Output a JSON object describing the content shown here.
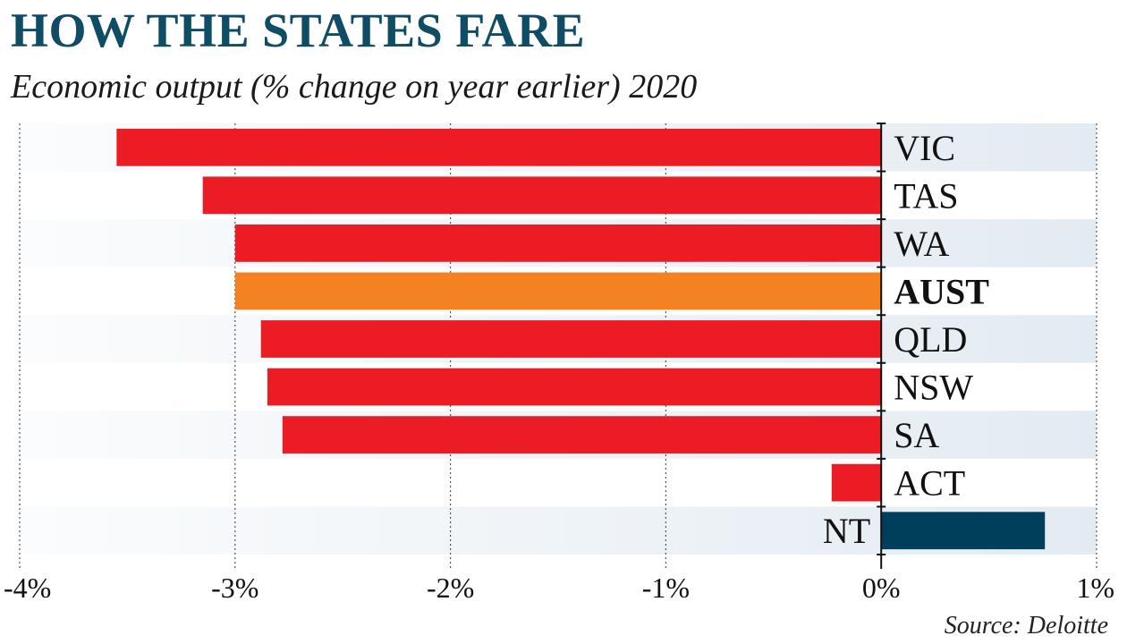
{
  "title": "HOW THE STATES FARE",
  "subtitle": "Economic output (% change on year earlier) 2020",
  "source": "Source: Deloitte",
  "colors": {
    "negative": "#ec1c24",
    "highlight": "#f58220",
    "positive": "#003f5c",
    "band": "#e3ebf2",
    "title": "#0f4d67"
  },
  "chart_data": {
    "type": "bar",
    "orientation": "horizontal",
    "categories": [
      "VIC",
      "TAS",
      "WA",
      "AUST",
      "QLD",
      "NSW",
      "SA",
      "ACT",
      "NT"
    ],
    "values": [
      -3.55,
      -3.15,
      -3.0,
      -3.0,
      -2.88,
      -2.85,
      -2.78,
      -0.23,
      0.76
    ],
    "highlight": "AUST",
    "xlim": [
      -4,
      1
    ],
    "xticks": [
      -4,
      -3,
      -2,
      -1,
      0,
      1
    ],
    "xtick_labels": [
      "-4%",
      "-3%",
      "-2%",
      "-1%",
      "0%",
      "1%"
    ],
    "grid": "vertical dotted",
    "xlabel": "",
    "ylabel": ""
  }
}
